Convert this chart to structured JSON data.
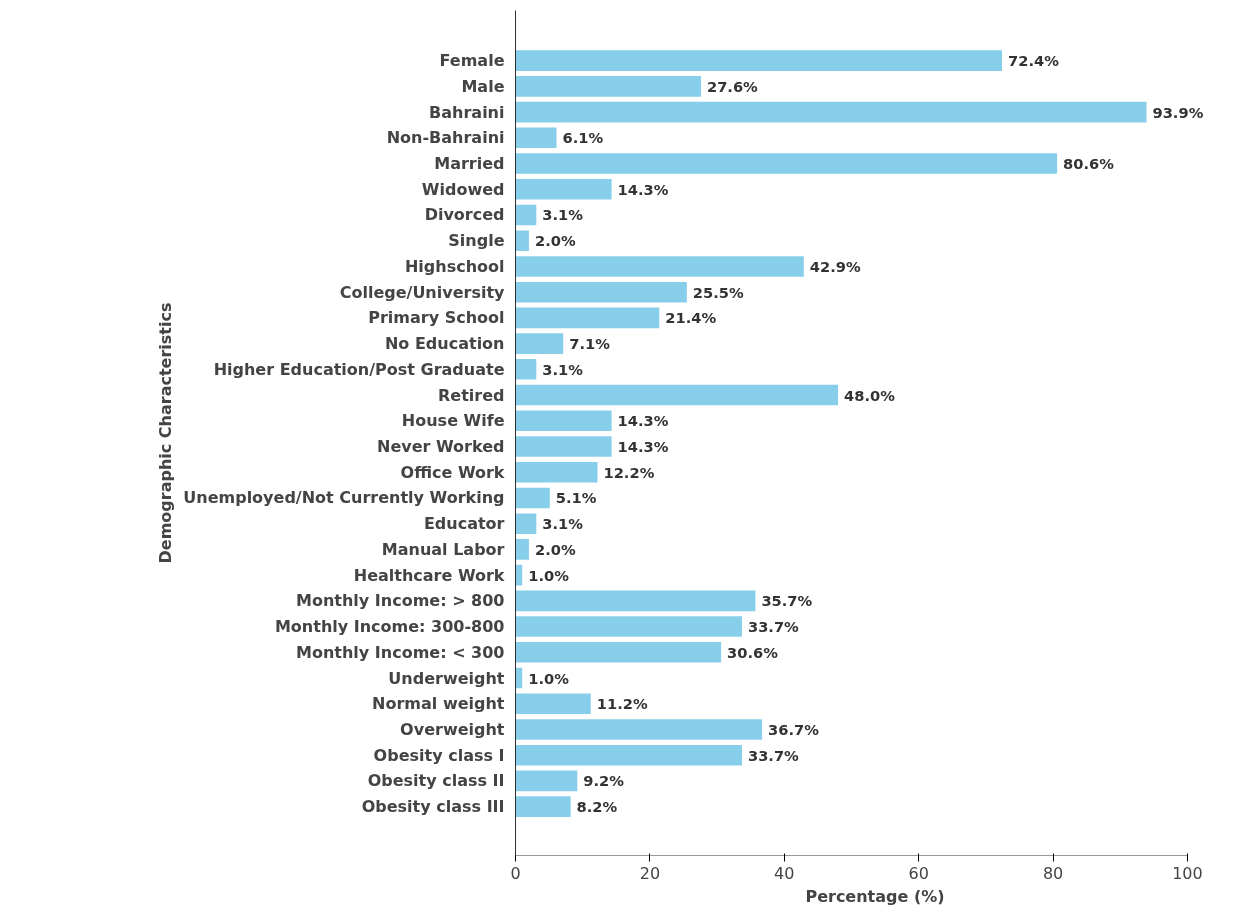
{
  "chart_data": {
    "type": "bar",
    "orientation": "horizontal",
    "xlabel": "Percentage (%)",
    "ylabel": "Demographic Characteristics",
    "categories": [
      "Female",
      "Male",
      "Bahraini",
      "Non-Bahraini",
      "Married",
      "Widowed",
      "Divorced",
      "Single",
      "Highschool",
      "College/University",
      "Primary School",
      "No Education",
      "Higher Education/Post Graduate",
      "Retired",
      "House Wife",
      "Never Worked",
      "Office Work",
      "Unemployed/Not Currently Working",
      "Educator",
      "Manual Labor",
      "Healthcare Work",
      "Monthly Income: > 800",
      "Monthly Income: 300-800",
      "Monthly Income: < 300",
      "Underweight",
      "Normal weight",
      "Overweight",
      "Obesity class I",
      "Obesity class II",
      "Obesity class III"
    ],
    "values": [
      72.4,
      27.6,
      93.9,
      6.1,
      80.6,
      14.3,
      3.1,
      2.0,
      42.9,
      25.5,
      21.4,
      7.1,
      3.1,
      48.0,
      14.3,
      14.3,
      12.2,
      5.1,
      3.1,
      2.0,
      1.0,
      35.7,
      33.7,
      30.6,
      1.0,
      11.2,
      36.7,
      33.7,
      9.2,
      8.2
    ],
    "value_labels": [
      "72.4%",
      "27.6%",
      "93.9%",
      "6.1%",
      "80.6%",
      "14.3%",
      "3.1%",
      "2.0%",
      "42.9%",
      "25.5%",
      "21.4%",
      "7.1%",
      "3.1%",
      "48.0%",
      "14.3%",
      "14.3%",
      "12.2%",
      "5.1%",
      "3.1%",
      "2.0%",
      "1.0%",
      "35.7%",
      "33.7%",
      "30.6%",
      "1.0%",
      "11.2%",
      "36.7%",
      "33.7%",
      "9.2%",
      "8.2%"
    ],
    "color": "#87ceeb",
    "xlim": [
      0,
      100
    ],
    "xticks": [
      0,
      20,
      40,
      60,
      80,
      100
    ],
    "grid": false,
    "legend": false
  }
}
